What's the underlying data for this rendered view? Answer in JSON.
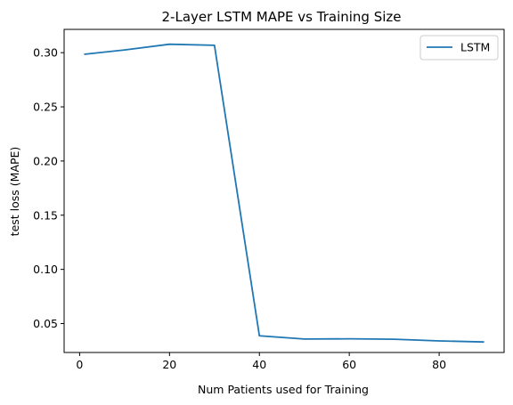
{
  "chart_data": {
    "type": "line",
    "title": "2-Layer LSTM MAPE vs Training Size",
    "xlabel": "Num Patients used for Training",
    "ylabel": "test loss (MAPE)",
    "xlim": [
      -3.45,
      94.45
    ],
    "ylim": [
      0.0233,
      0.3215
    ],
    "xticks": [
      0,
      20,
      40,
      60,
      80
    ],
    "xtick_labels": [
      "0",
      "20",
      "40",
      "60",
      "80"
    ],
    "yticks": [
      0.05,
      0.1,
      0.15,
      0.2,
      0.25,
      0.3
    ],
    "ytick_labels": [
      "0.05",
      "0.10",
      "0.15",
      "0.20",
      "0.25",
      "0.30"
    ],
    "grid": false,
    "legend_position": "top-right",
    "series": [
      {
        "name": "LSTM",
        "color": "#1f77b4",
        "x": [
          1,
          10,
          20,
          30,
          40,
          50,
          60,
          70,
          80,
          90
        ],
        "y": [
          0.2985,
          0.3025,
          0.3078,
          0.3068,
          0.0387,
          0.0357,
          0.0359,
          0.0355,
          0.034,
          0.033
        ]
      }
    ]
  }
}
